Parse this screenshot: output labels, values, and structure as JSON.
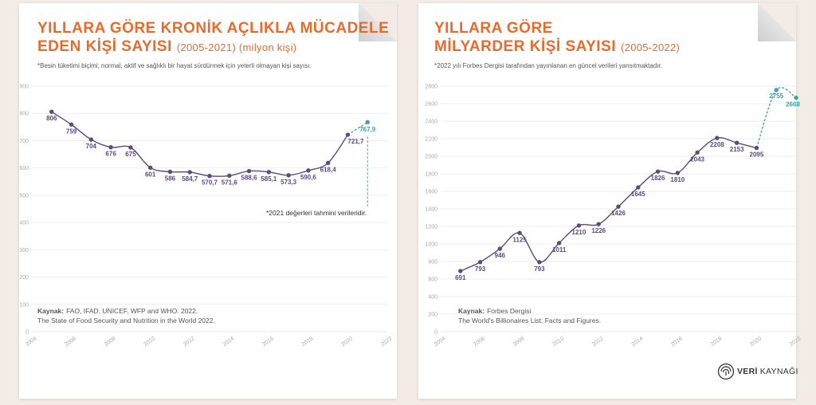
{
  "colors": {
    "title": "#ea6a2c",
    "line": "#5a4a80",
    "estimate": "#3aa69c",
    "grid": "#eeeeee",
    "background": "#f3ebe6"
  },
  "left": {
    "title_line1": "YILLARA GÖRE KRONİK AÇLIKLA MÜCADELE",
    "title_line2_bold": "EDEN KİŞİ SAYISI",
    "title_line2_rest": "(2005-2021) (milyon kişi)",
    "note": "*Besin tüketimi biçimi; normal, aktif ve sağlıklı bir hayat sürdürmek için yeterli olmayan kişi sayısı.",
    "estimate_note": "*2021 değerleri tahmini verileridir.",
    "source_label": "Kaynak:",
    "source_text": "FAO, IFAD, UNICEF, WFP and WHO. 2022.",
    "source_line2": "The State of Food Security and Nutrition in the World 2022."
  },
  "right": {
    "title_line1": "YILLARA GÖRE",
    "title_line2_bold": "MİLYARDER KİŞİ SAYISI",
    "title_line2_rest": "(2005-2022)",
    "note": "*2022 yılı Forbes Dergisi tarafından yayınlanan en güncel verileri yansıtmaktadır.",
    "source_label": "Kaynak:",
    "source_text": "Forbes Dergisi",
    "source_line2": "The World's Billionaires List: Facts and Figures."
  },
  "logo": {
    "bold": "VERİ",
    "rest": "KAYNAĞI",
    "icon": "fingerprint-icon"
  },
  "chart_data": [
    {
      "type": "line",
      "x": [
        2005,
        2006,
        2007,
        2008,
        2009,
        2010,
        2011,
        2012,
        2013,
        2014,
        2015,
        2016,
        2017,
        2018,
        2019,
        2020,
        2021
      ],
      "values": [
        806,
        759,
        704,
        676,
        675,
        601,
        586,
        584.7,
        570.7,
        571.6,
        588.6,
        585.1,
        573.3,
        590.6,
        618.4,
        721.7,
        767.9
      ],
      "labels": [
        "806",
        "759",
        "704",
        "676",
        "675",
        "601",
        "586",
        "584,7",
        "570,7",
        "571,6",
        "588,6",
        "585,1",
        "573,3",
        "590,6",
        "618,4",
        "721,7",
        "767,9"
      ],
      "estimated_from_index": 16,
      "xlim": [
        2004,
        2022
      ],
      "ylim": [
        0,
        900
      ],
      "xticks": [
        2004,
        2006,
        2008,
        2010,
        2012,
        2014,
        2016,
        2018,
        2020,
        2022
      ],
      "yticks": [
        0,
        100,
        200,
        300,
        400,
        500,
        600,
        700,
        800,
        900
      ],
      "grid": true
    },
    {
      "type": "line",
      "x": [
        2005,
        2006,
        2007,
        2008,
        2009,
        2010,
        2011,
        2012,
        2013,
        2014,
        2015,
        2016,
        2017,
        2018,
        2019,
        2020,
        2021,
        2022
      ],
      "values": [
        691,
        793,
        946,
        1125,
        793,
        1011,
        1210,
        1226,
        1426,
        1645,
        1826,
        1810,
        2043,
        2208,
        2153,
        2095,
        2755,
        2668
      ],
      "labels": [
        "691",
        "793",
        "946",
        "1125",
        "793",
        "1011",
        "1210",
        "1226",
        "1426",
        "1645",
        "1826",
        "1810",
        "2043",
        "2208",
        "2153",
        "2095",
        "2755",
        "2668"
      ],
      "estimated_from_index": 16,
      "xlim": [
        2004,
        2022
      ],
      "ylim": [
        0,
        2800
      ],
      "xticks": [
        2004,
        2006,
        2008,
        2010,
        2012,
        2014,
        2016,
        2018,
        2020,
        2022
      ],
      "yticks": [
        0,
        200,
        400,
        600,
        800,
        1000,
        1200,
        1400,
        1600,
        1800,
        2000,
        2200,
        2400,
        2600,
        2800
      ],
      "grid": true
    }
  ]
}
